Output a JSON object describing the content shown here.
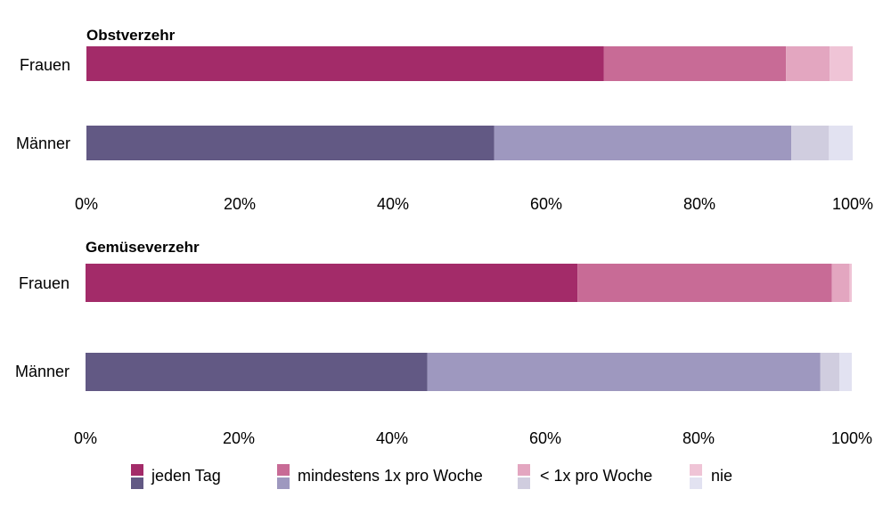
{
  "chart_data": [
    {
      "type": "bar",
      "orientation": "horizontal",
      "stacked": true,
      "title": "Obstverzehr",
      "categories": [
        "Frauen",
        "Männer"
      ],
      "series": [
        {
          "name": "jeden Tag",
          "values": [
            67.5,
            53.2
          ]
        },
        {
          "name": "mindestens 1x pro Woche",
          "values": [
            23.8,
            38.8
          ]
        },
        {
          "name": "< 1x pro Woche",
          "values": [
            5.7,
            4.9
          ]
        },
        {
          "name": "nie",
          "values": [
            3.0,
            3.1
          ]
        }
      ],
      "xlim": [
        0,
        100
      ],
      "x_ticks": [
        "0%",
        "20%",
        "40%",
        "60%",
        "80%",
        "100%"
      ],
      "grid": false,
      "colors": {
        "Frauen": [
          "#a32b69",
          "#c86b96",
          "#e3a6c0",
          "#efc4d6"
        ],
        "Männer": [
          "#625984",
          "#9e98bf",
          "#d0cddf",
          "#e2e2f1"
        ]
      }
    },
    {
      "type": "bar",
      "orientation": "horizontal",
      "stacked": true,
      "title": "Gemüseverzehr",
      "categories": [
        "Frauen",
        "Männer"
      ],
      "series": [
        {
          "name": "jeden Tag",
          "values": [
            64.2,
            44.6
          ]
        },
        {
          "name": "mindestens 1x pro Woche",
          "values": [
            33.2,
            51.3
          ]
        },
        {
          "name": "< 1x pro Woche",
          "values": [
            2.3,
            2.5
          ]
        },
        {
          "name": "nie",
          "values": [
            0.3,
            1.6
          ]
        }
      ],
      "xlim": [
        0,
        100
      ],
      "x_ticks": [
        "0%",
        "20%",
        "40%",
        "60%",
        "80%",
        "100%"
      ],
      "grid": false,
      "colors": {
        "Frauen": [
          "#a32b69",
          "#c86b96",
          "#e3a6c0",
          "#efc4d6"
        ],
        "Männer": [
          "#625984",
          "#9e98bf",
          "#d0cddf",
          "#e2e2f1"
        ]
      }
    }
  ],
  "legend": {
    "position": "bottom",
    "items": [
      {
        "label": "jeden Tag",
        "color_top": "#a32b69",
        "color_bottom": "#625984"
      },
      {
        "label": "mindestens 1x pro Woche",
        "color_top": "#c86b96",
        "color_bottom": "#9e98bf"
      },
      {
        "label": "< 1x pro Woche",
        "color_top": "#e3a6c0",
        "color_bottom": "#d0cddf"
      },
      {
        "label": "nie",
        "color_top": "#efc4d6",
        "color_bottom": "#e2e2f1"
      }
    ]
  }
}
